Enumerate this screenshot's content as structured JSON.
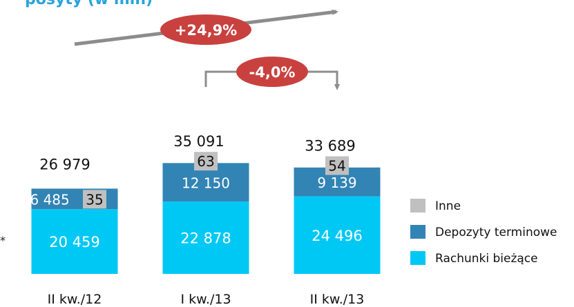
{
  "title": "posyty (w mln)",
  "footnote_mark": "*",
  "chart_data": {
    "type": "bar",
    "stacked": true,
    "categories": [
      "II kw./12",
      "I kw./13",
      "II kw./13"
    ],
    "series": [
      {
        "name": "Rachunki bieżące",
        "values": [
          20459,
          22878,
          24496
        ],
        "labels": [
          "20 459",
          "22 878",
          "24 496"
        ],
        "color": "#00c8f5"
      },
      {
        "name": "Depozyty terminowe",
        "values": [
          6485,
          12150,
          9139
        ],
        "labels": [
          "6 485",
          "12 150",
          "9 139"
        ],
        "color": "#3284b4"
      },
      {
        "name": "Inne",
        "values": [
          35,
          63,
          54
        ],
        "labels": [
          "35",
          "63",
          "54"
        ],
        "color": "#c0c0c0"
      }
    ],
    "totals": [
      26979,
      35091,
      33689
    ],
    "total_labels": [
      "26 979",
      "35 091",
      "33 689"
    ],
    "legend_position": "right",
    "annotations": [
      {
        "text": "+24,9%",
        "from": "II kw./12",
        "to": "II kw./13",
        "color": "#c9413e"
      },
      {
        "text": "-4,0%",
        "from": "I kw./13",
        "to": "II kw./13",
        "color": "#c9413e"
      }
    ],
    "arrow_color": "#8c8c8c",
    "grid": false,
    "title": "posyty (w mln)"
  }
}
